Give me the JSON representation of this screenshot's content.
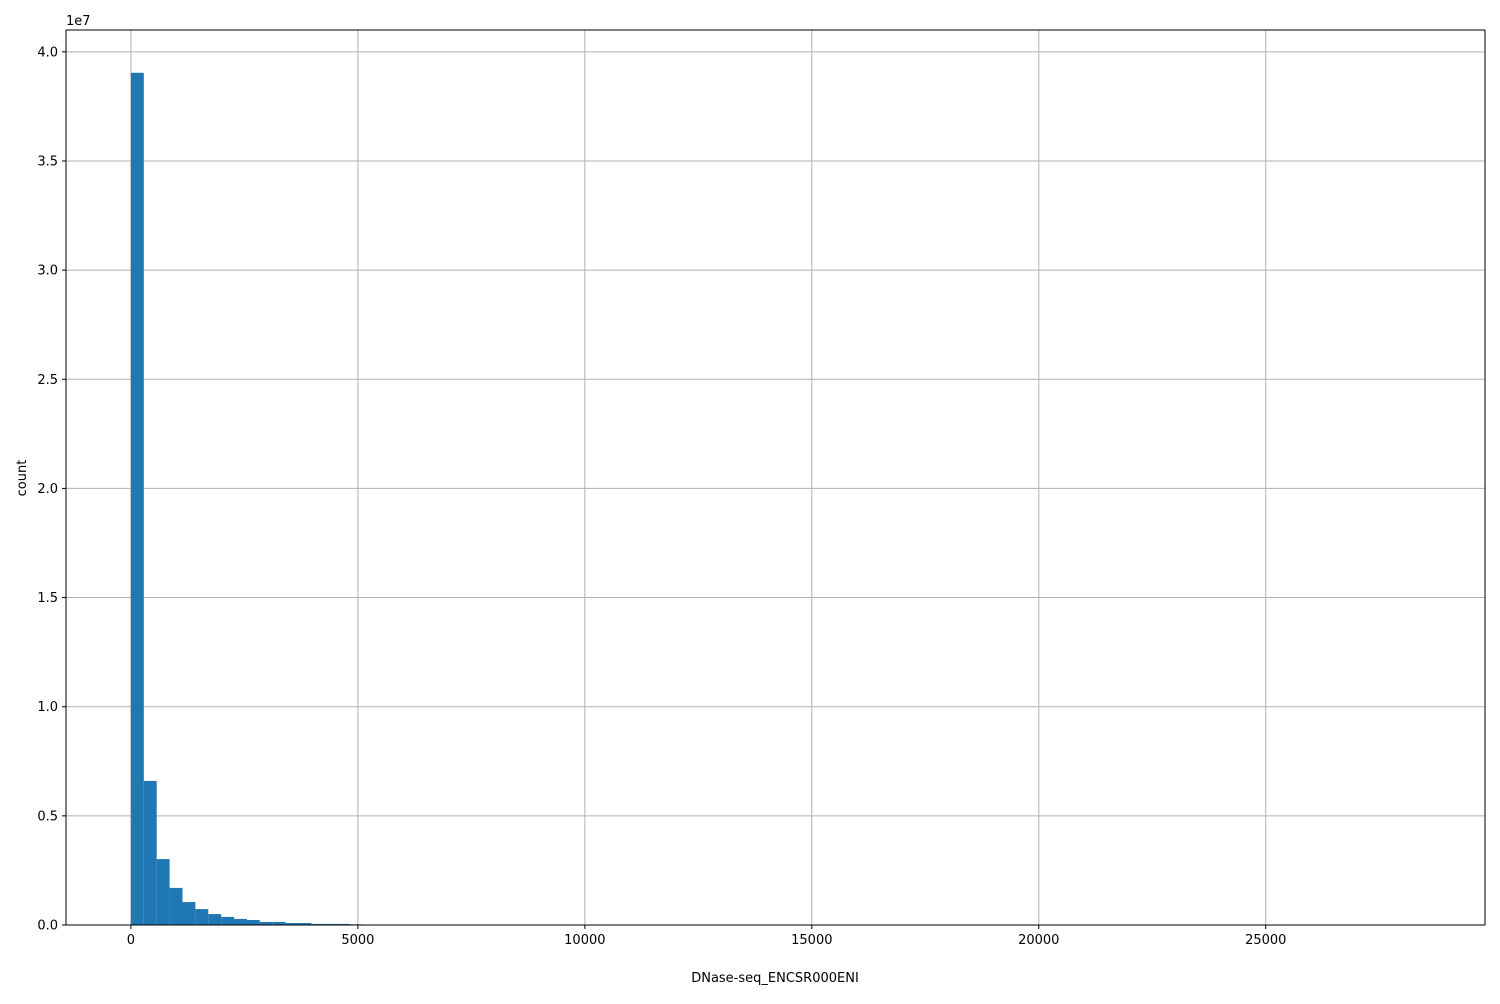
{
  "chart_data": {
    "type": "bar",
    "subtype": "histogram",
    "xlabel": "DNase-seq_ENCSR000ENI",
    "ylabel": "count",
    "y_offset_label": "1e7",
    "xlim": [
      -1430,
      29830
    ],
    "ylim": [
      0,
      41000000
    ],
    "grid": true,
    "color": "#1f77b4",
    "x_ticks": [
      0,
      5000,
      10000,
      15000,
      20000,
      25000
    ],
    "x_tick_labels": [
      "0",
      "5000",
      "10000",
      "15000",
      "20000",
      "25000"
    ],
    "y_ticks": [
      0,
      5000000,
      10000000,
      15000000,
      20000000,
      25000000,
      30000000,
      35000000,
      40000000
    ],
    "y_tick_labels": [
      "0.0",
      "0.5",
      "1.0",
      "1.5",
      "2.0",
      "2.5",
      "3.0",
      "3.5",
      "4.0"
    ],
    "bin_start": 0,
    "bin_width": 284,
    "counts": [
      39040000,
      6600000,
      3020000,
      1700000,
      1050000,
      730000,
      500000,
      370000,
      280000,
      230000,
      140000,
      140000,
      90000,
      90000,
      50000,
      50000,
      50000,
      30000,
      20000,
      15000,
      10000,
      8000,
      6000,
      5000,
      4000,
      3000,
      2000,
      1500,
      1000,
      800
    ]
  }
}
